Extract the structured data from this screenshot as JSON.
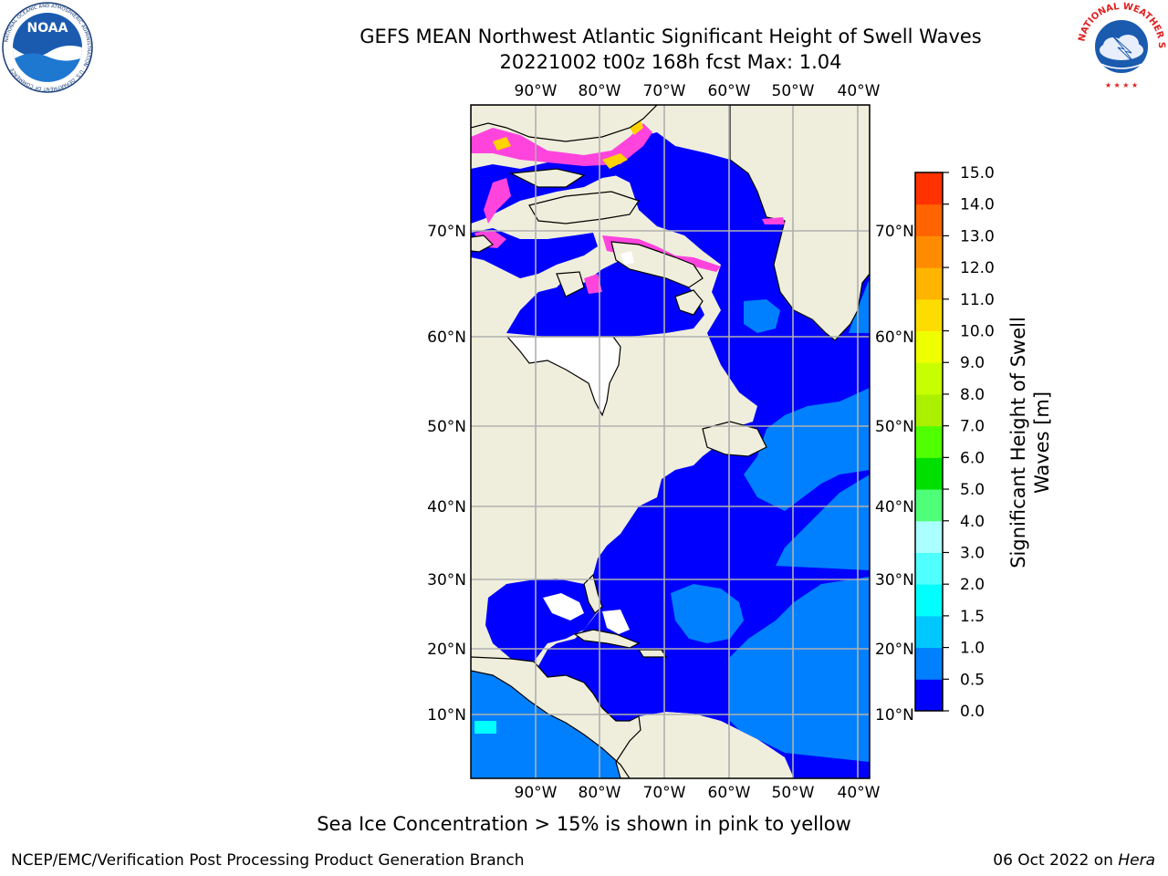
{
  "header": {
    "title_line1": "GEFS MEAN Northwest Atlantic Significant Height of Swell Waves",
    "title_line2": "20221002 t00z 168h fcst   Max: 1.04"
  },
  "logos": {
    "left": {
      "name": "NOAA",
      "ring_text": "NATIONAL OCEANIC AND ATMOSPHERIC ADMINISTRATION · U.S. DEPARTMENT OF COMMERCE"
    },
    "right": {
      "name": "NATIONAL WEATHER SERVICE"
    }
  },
  "map": {
    "lon_labels_top": [
      "90°W",
      "80°W",
      "70°W",
      "60°W",
      "50°W",
      "40°W"
    ],
    "lon_labels_bottom": [
      "90°W",
      "80°W",
      "70°W",
      "60°W",
      "50°W",
      "40°W"
    ],
    "lat_labels_left": [
      "70°N",
      "60°N",
      "50°N",
      "40°N",
      "30°N",
      "20°N",
      "10°N"
    ],
    "lat_labels_right": [
      "70°N",
      "60°N",
      "50°N",
      "40°N",
      "30°N",
      "20°N",
      "10°N"
    ],
    "colors": {
      "land": "#efeedc",
      "ocean_low": "#0000ff",
      "ocean_mid": "#0080ff",
      "ice_pink": "#ff44dd",
      "ice_yellow": "#ffd200",
      "gridline": "#b0b0b0"
    }
  },
  "colorbar": {
    "label_line1": "Significant Height of Swell",
    "label_line2": "Waves [m]",
    "ticks": [
      "0.0",
      "0.5",
      "1.0",
      "1.5",
      "2.0",
      "3.0",
      "4.0",
      "5.0",
      "6.0",
      "7.0",
      "8.0",
      "9.0",
      "10.0",
      "11.0",
      "12.0",
      "13.0",
      "14.0",
      "15.0"
    ],
    "colors": [
      "#0000ff",
      "#0080ff",
      "#00c8ff",
      "#00ffff",
      "#50ffff",
      "#aaffff",
      "#50ff78",
      "#00e000",
      "#50ff00",
      "#aaf000",
      "#c8ff00",
      "#f0ff00",
      "#ffdc00",
      "#ffb400",
      "#ff8c00",
      "#ff6400",
      "#ff3200",
      "#ff0000"
    ]
  },
  "footer": {
    "note": "Sea Ice Concentration > 15% is shown in pink to yellow",
    "left": "NCEP/EMC/Verification Post Processing Product Generation Branch",
    "right_date": "06 Oct 2022 on ",
    "right_host": "Hera"
  }
}
